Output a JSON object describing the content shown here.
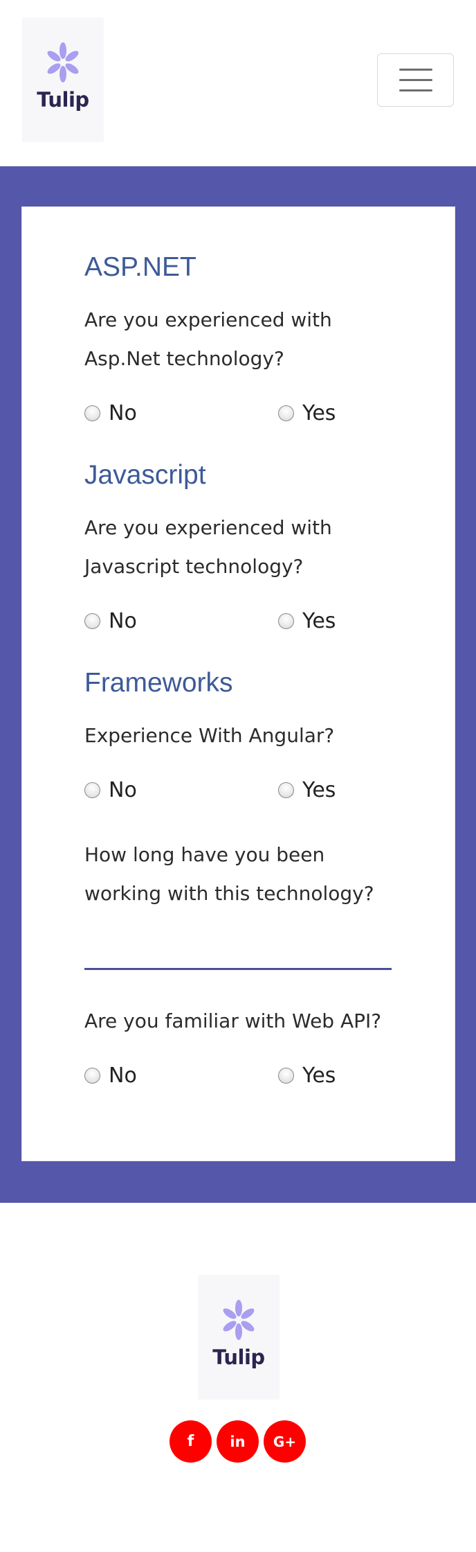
{
  "brand": {
    "name": "Tulip"
  },
  "colors": {
    "band": "#5557aa",
    "title": "#3d5a98",
    "social": "#ff0000",
    "input_line": "#4b4e9c"
  },
  "sections": [
    {
      "title": "ASP.NET",
      "questions": [
        {
          "text": "Are you experienced with Asp.Net technology?",
          "options": [
            "No",
            "Yes"
          ]
        }
      ]
    },
    {
      "title": "Javascript",
      "questions": [
        {
          "text": "Are you experienced with Javascript technology?",
          "options": [
            "No",
            "Yes"
          ]
        }
      ]
    },
    {
      "title": "Frameworks",
      "questions": [
        {
          "text": "Experience With Angular?",
          "options": [
            "No",
            "Yes"
          ]
        },
        {
          "text": "How long have you been working with this technology?",
          "input_value": ""
        },
        {
          "text": "Are you familiar with Web API?",
          "options": [
            "No",
            "Yes"
          ]
        }
      ]
    }
  ],
  "footer": {
    "social": [
      {
        "label": "f",
        "icon": "facebook-icon"
      },
      {
        "label": "in",
        "icon": "linkedin-icon"
      },
      {
        "label": "G+",
        "icon": "google-plus-icon"
      }
    ]
  }
}
